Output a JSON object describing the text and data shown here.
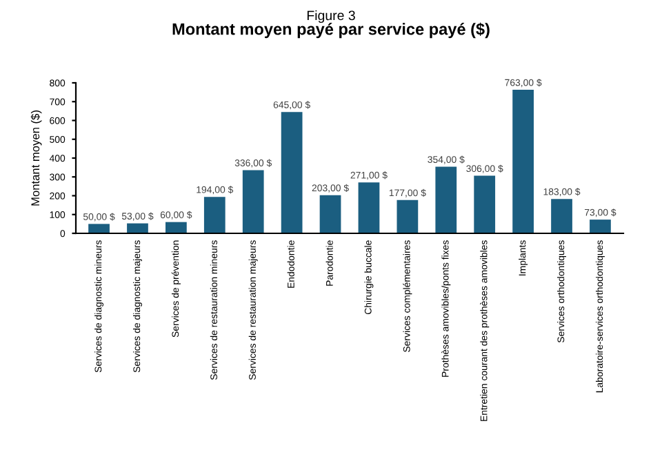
{
  "chart_data": {
    "type": "bar",
    "title": "Figure 3",
    "subtitle": "Montant moyen payé par service payé ($)",
    "ylabel": "Montant moyen ($)",
    "categories": [
      "Services de diagnostic mineurs",
      "Services de diagnostic majeurs",
      "Services de prévention",
      "Services de restauration mineurs",
      "Services de restauration majeurs",
      "Endodontie",
      "Parodontie",
      "Chirurgie buccale",
      "Services complémentaires",
      "Prothèses amovibles/ponts fixes",
      "Entretien courant des prothèses amovibles",
      "Implants",
      "Services orthodontiques",
      "Laboratoire-services orthodontiques"
    ],
    "values": [
      50,
      53,
      60,
      194,
      336,
      645,
      203,
      271,
      177,
      354,
      306,
      763,
      183,
      73
    ],
    "value_labels": [
      "50,00 $",
      "53,00 $",
      "60,00 $",
      "194,00 $",
      "336,00 $",
      "645,00 $",
      "203,00 $",
      "271,00 $",
      "177,00 $",
      "354,00 $",
      "306,00 $",
      "763,00 $",
      "183,00 $",
      "73,00 $"
    ],
    "color": "#1b5e80",
    "ylim": [
      0,
      800
    ],
    "yticks": [
      0,
      100,
      200,
      300,
      400,
      500,
      600,
      700,
      800
    ],
    "grid": false,
    "legend": false
  }
}
